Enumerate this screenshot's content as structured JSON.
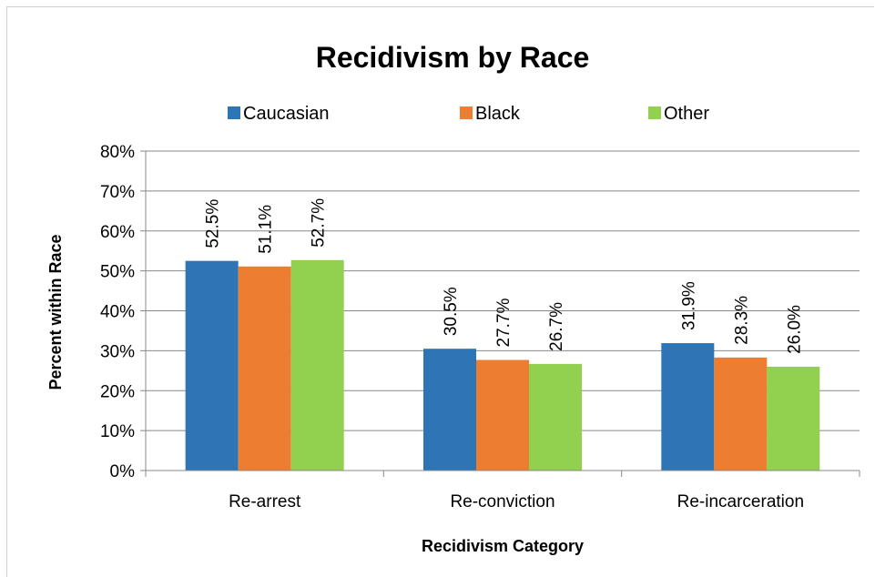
{
  "chart_data": {
    "type": "bar",
    "title": "Recidivism by Race",
    "xlabel": "Recidivism Category",
    "ylabel": "Percent within Race",
    "categories": [
      "Re-arrest",
      "Re-conviction",
      "Re-incarceration"
    ],
    "series": [
      {
        "name": "Caucasian",
        "values": [
          52.5,
          30.5,
          31.9
        ],
        "labels": [
          "52.5%",
          "30.5%",
          "31.9%"
        ],
        "color": "#2e75b6"
      },
      {
        "name": "Black",
        "values": [
          51.1,
          27.7,
          28.3
        ],
        "labels": [
          "51.1%",
          "27.7%",
          "28.3%"
        ],
        "color": "#ed7d31"
      },
      {
        "name": "Other",
        "values": [
          52.7,
          26.7,
          26.0
        ],
        "labels": [
          "52.7%",
          "26.7%",
          "26.0%"
        ],
        "color": "#92d050"
      }
    ],
    "ylim": [
      0,
      80
    ],
    "yticks": [
      "0%",
      "10%",
      "20%",
      "30%",
      "40%",
      "50%",
      "60%",
      "70%",
      "80%"
    ],
    "grid": true,
    "legend_position": "top"
  }
}
